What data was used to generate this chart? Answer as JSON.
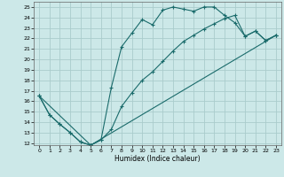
{
  "xlabel": "Humidex (Indice chaleur)",
  "bg_color": "#cce8e8",
  "grid_color": "#aacccc",
  "line_color": "#1a6b6b",
  "xlim": [
    -0.5,
    23.5
  ],
  "ylim": [
    11.8,
    25.5
  ],
  "xticks": [
    0,
    1,
    2,
    3,
    4,
    5,
    6,
    7,
    8,
    9,
    10,
    11,
    12,
    13,
    14,
    15,
    16,
    17,
    18,
    19,
    20,
    21,
    22,
    23
  ],
  "yticks": [
    12,
    13,
    14,
    15,
    16,
    17,
    18,
    19,
    20,
    21,
    22,
    23,
    24,
    25
  ],
  "line1_x": [
    0,
    1,
    2,
    3,
    4,
    5,
    6,
    7,
    8,
    9,
    10,
    11,
    12,
    13,
    14,
    15,
    16,
    17,
    18,
    19,
    20,
    21,
    22,
    23
  ],
  "line1_y": [
    16.5,
    14.7,
    13.8,
    13.0,
    12.1,
    11.8,
    12.3,
    17.3,
    21.2,
    22.5,
    23.8,
    23.3,
    24.7,
    25.0,
    24.8,
    24.6,
    25.0,
    25.0,
    24.2,
    23.5,
    22.2,
    22.7,
    21.8,
    22.3
  ],
  "line2_x": [
    0,
    1,
    2,
    3,
    4,
    5,
    6,
    7,
    8,
    9,
    10,
    11,
    12,
    13,
    14,
    15,
    16,
    17,
    18,
    19,
    20,
    21,
    22,
    23
  ],
  "line2_y": [
    16.5,
    14.7,
    13.8,
    13.0,
    12.1,
    11.8,
    12.3,
    13.3,
    15.5,
    16.8,
    18.0,
    18.8,
    19.8,
    20.8,
    21.7,
    22.3,
    22.9,
    23.4,
    23.9,
    24.2,
    22.2,
    22.7,
    21.8,
    22.3
  ],
  "line3_x": [
    0,
    5,
    23
  ],
  "line3_y": [
    16.5,
    11.8,
    22.3
  ]
}
